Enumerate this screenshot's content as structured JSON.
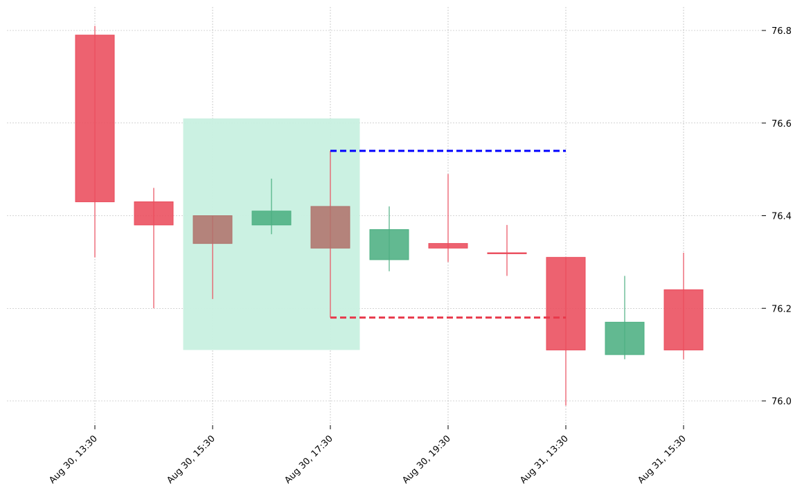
{
  "chart_data": {
    "type": "candlestick",
    "title": "",
    "xlabel": "",
    "ylabel": "",
    "ylim": [
      75.95,
      76.85
    ],
    "y_ticks": [
      "76.0",
      "76.2",
      "76.4",
      "76.6",
      "76.8"
    ],
    "x_ticks": [
      {
        "index": 0,
        "label": "Aug 30, 13:30"
      },
      {
        "index": 2,
        "label": "Aug 30, 15:30"
      },
      {
        "index": 4,
        "label": "Aug 30, 17:30"
      },
      {
        "index": 6,
        "label": "Aug 30, 19:30"
      },
      {
        "index": 8,
        "label": "Aug 31, 13:30"
      },
      {
        "index": 10,
        "label": "Aug 31, 15:30"
      }
    ],
    "grid": true,
    "candles": [
      {
        "open": 76.79,
        "high": 76.81,
        "low": 76.31,
        "close": 76.43
      },
      {
        "open": 76.43,
        "high": 76.46,
        "low": 76.2,
        "close": 76.38
      },
      {
        "open": 76.4,
        "high": 76.4,
        "low": 76.22,
        "close": 76.34
      },
      {
        "open": 76.38,
        "high": 76.48,
        "low": 76.36,
        "close": 76.41
      },
      {
        "open": 76.42,
        "high": 76.54,
        "low": 76.18,
        "close": 76.33
      },
      {
        "open": 76.305,
        "high": 76.42,
        "low": 76.28,
        "close": 76.37
      },
      {
        "open": 76.34,
        "high": 76.49,
        "low": 76.3,
        "close": 76.33
      },
      {
        "open": 76.32,
        "high": 76.38,
        "low": 76.27,
        "close": 76.32
      },
      {
        "open": 76.31,
        "high": 76.31,
        "low": 75.99,
        "close": 76.11
      },
      {
        "open": 76.1,
        "high": 76.27,
        "low": 76.09,
        "close": 76.17
      },
      {
        "open": 76.24,
        "high": 76.32,
        "low": 76.09,
        "close": 76.11
      }
    ],
    "highlight_zone": {
      "x_start": 1.5,
      "x_end": 4.5,
      "y_low": 76.11,
      "y_high": 76.61,
      "color": "#c8f0e0"
    },
    "levels": [
      {
        "name": "upper",
        "value": 76.54,
        "x_start": 4,
        "x_end": 8,
        "color": "#0000ff"
      },
      {
        "name": "lower",
        "value": 76.18,
        "x_start": 4,
        "x_end": 8,
        "color": "#e8394b"
      }
    ],
    "colors": {
      "up": "#4caf82",
      "down": "#ea4c5c",
      "overlap": "#b0736c",
      "grid": "#aaaaaa"
    }
  }
}
